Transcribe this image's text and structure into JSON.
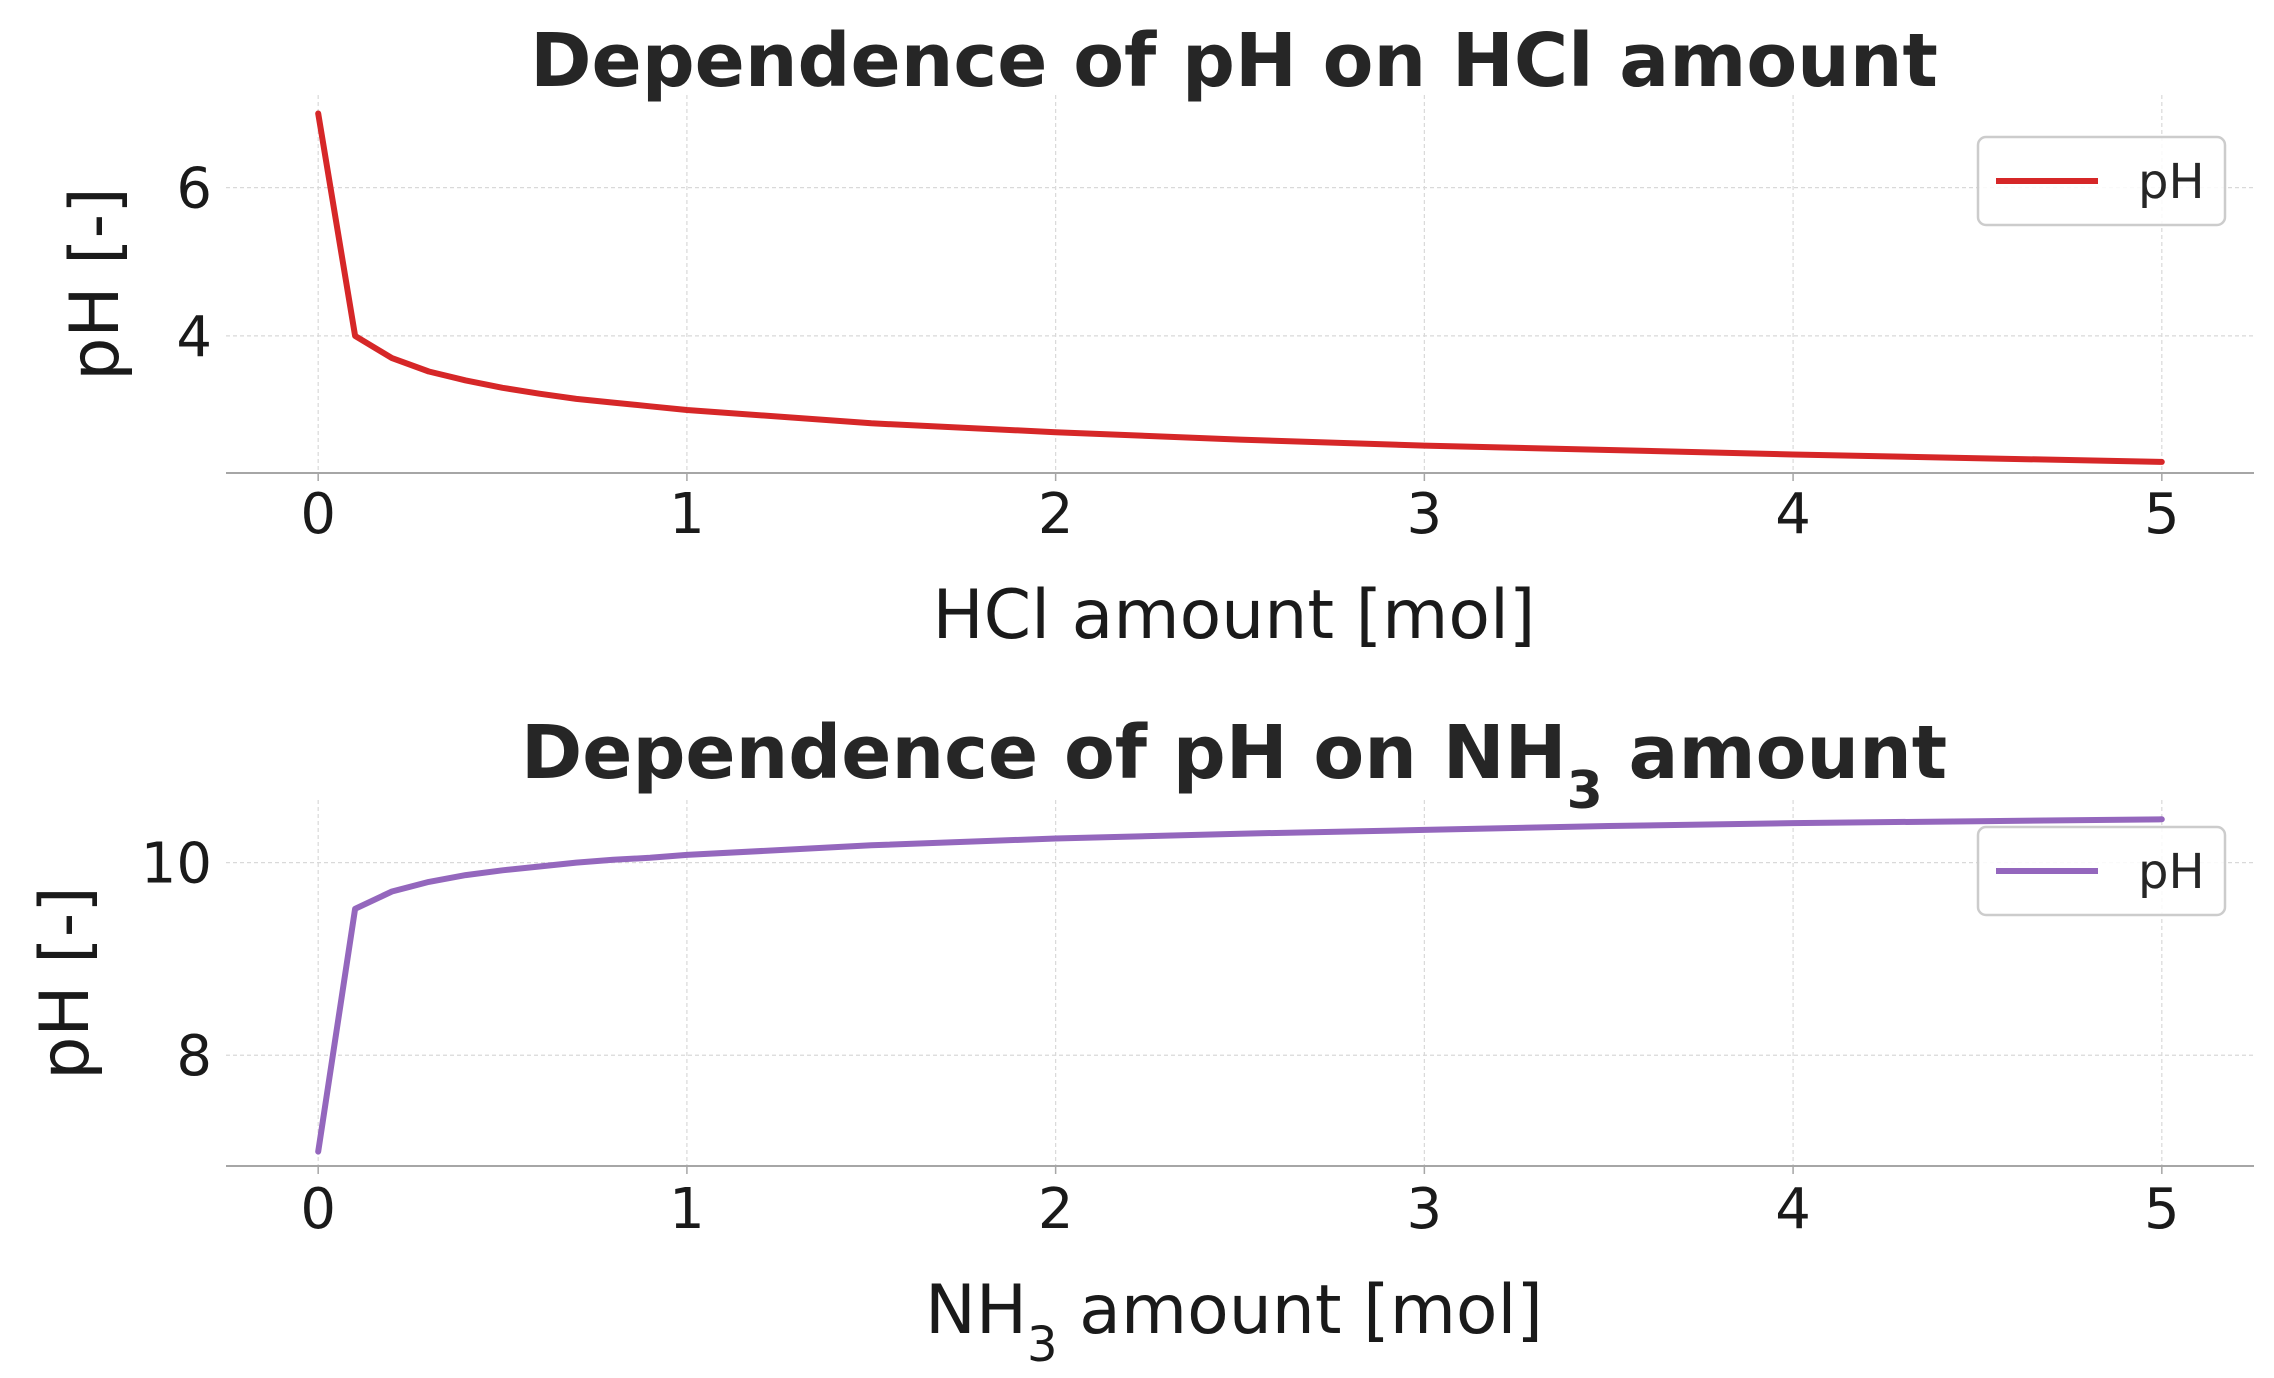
{
  "chart_data": [
    {
      "type": "line",
      "title_parts": [
        {
          "text": "Dependence of pH on HCl amount",
          "sub": false
        }
      ],
      "xlabel_parts": [
        {
          "text": "HCl amount [mol]",
          "sub": false
        }
      ],
      "ylabel": "pH [-]",
      "xlim": [
        -0.25,
        5.25
      ],
      "ylim": [
        2.15,
        7.25
      ],
      "xticks": [
        0,
        1,
        2,
        3,
        4,
        5
      ],
      "yticks": [
        4,
        6
      ],
      "grid": true,
      "legend_position": "top-right",
      "series": [
        {
          "name": "pH",
          "color": "#d62728",
          "x": [
            0,
            0.1,
            0.2,
            0.3,
            0.4,
            0.5,
            0.6,
            0.7,
            0.8,
            0.9,
            1.0,
            1.5,
            2.0,
            2.5,
            3.0,
            3.5,
            4.0,
            4.5,
            5.0
          ],
          "y": [
            7.0,
            4.0,
            3.7,
            3.52,
            3.4,
            3.3,
            3.22,
            3.15,
            3.1,
            3.05,
            3.0,
            2.82,
            2.7,
            2.6,
            2.52,
            2.46,
            2.4,
            2.35,
            2.3
          ]
        }
      ]
    },
    {
      "type": "line",
      "title_parts": [
        {
          "text": "Dependence of pH on NH",
          "sub": false
        },
        {
          "text": "3",
          "sub": true
        },
        {
          "text": " amount",
          "sub": false
        }
      ],
      "xlabel_parts": [
        {
          "text": "NH",
          "sub": false
        },
        {
          "text": "3",
          "sub": true
        },
        {
          "text": " amount [mol]",
          "sub": false
        }
      ],
      "ylabel": "pH [-]",
      "xlim": [
        -0.25,
        5.25
      ],
      "ylim": [
        6.85,
        10.65
      ],
      "xticks": [
        0,
        1,
        2,
        3,
        4,
        5
      ],
      "yticks": [
        8,
        10
      ],
      "grid": true,
      "legend_position": "top-right",
      "series": [
        {
          "name": "pH",
          "color": "#9467bd",
          "x": [
            0,
            0.1,
            0.2,
            0.3,
            0.4,
            0.5,
            0.6,
            0.7,
            0.8,
            0.9,
            1.0,
            1.5,
            2.0,
            2.5,
            3.0,
            3.5,
            4.0,
            4.5,
            5.0
          ],
          "y": [
            7.0,
            9.52,
            9.7,
            9.8,
            9.87,
            9.92,
            9.96,
            10.0,
            10.03,
            10.05,
            10.08,
            10.18,
            10.25,
            10.3,
            10.34,
            10.38,
            10.41,
            10.43,
            10.45
          ]
        }
      ]
    }
  ]
}
